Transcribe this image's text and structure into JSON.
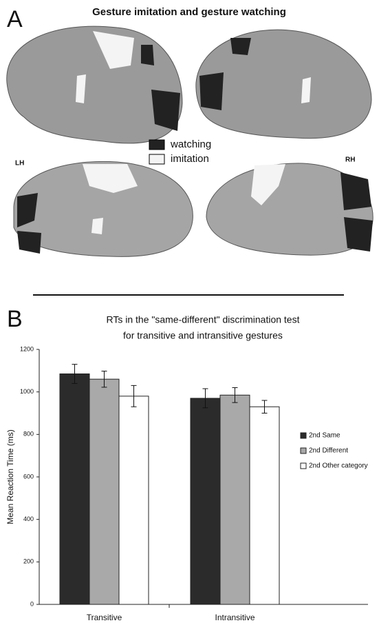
{
  "panel_a": {
    "letter": "A",
    "title": "Gesture imitation and gesture watching",
    "legend": [
      "watching",
      "imitation"
    ],
    "hemispheres": [
      "LH",
      "RH"
    ]
  },
  "chart_data": {
    "type": "bar",
    "letter": "B",
    "title": [
      "RTs in the \"same-different\" discrimination test",
      "for transitive and intransitive gestures"
    ],
    "y_label": "Mean Reaction Time (ms)",
    "categories": [
      "Transitive",
      "Intransitive"
    ],
    "series": [
      {
        "name": "2nd Same",
        "color": "#2b2b2b",
        "values": [
          1085,
          970
        ],
        "errors": [
          45,
          45
        ]
      },
      {
        "name": "2nd Different",
        "color": "#a9a9a9",
        "values": [
          1060,
          985
        ],
        "errors": [
          38,
          35
        ]
      },
      {
        "name": "2nd Other category",
        "color": "#ffffff",
        "values": [
          980,
          930
        ],
        "errors": [
          50,
          30
        ]
      }
    ],
    "ylim": [
      0,
      1200
    ],
    "yticks": [
      0,
      200,
      400,
      600,
      800,
      1000,
      1200
    ],
    "legend": "right"
  }
}
